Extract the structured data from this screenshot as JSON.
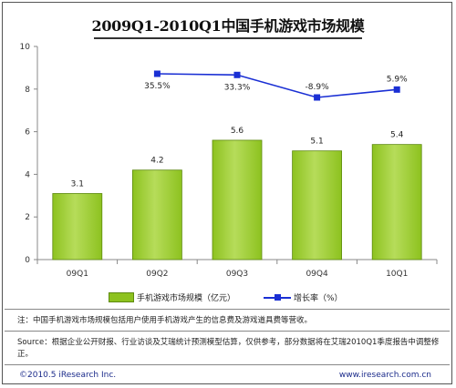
{
  "title": "2009Q1-2010Q1中国手机游戏市场规模",
  "chart_data": {
    "type": "bar+line",
    "categories": [
      "09Q1",
      "09Q2",
      "09Q3",
      "09Q4",
      "10Q1"
    ],
    "series": [
      {
        "name": "手机游戏市场规模（亿元）",
        "type": "bar",
        "values": [
          3.1,
          4.2,
          5.6,
          5.1,
          5.4
        ],
        "value_labels": [
          "3.1",
          "4.2",
          "5.6",
          "5.1",
          "5.4"
        ],
        "color": "#8dc21f"
      },
      {
        "name": "增长率（%）",
        "type": "line",
        "x": [
          "09Q2",
          "09Q3",
          "09Q4",
          "10Q1"
        ],
        "values": [
          35.5,
          33.3,
          -8.9,
          5.9
        ],
        "value_labels": [
          "35.5%",
          "33.3%",
          "-8.9%",
          "5.9%"
        ],
        "color": "#1a2fd4"
      }
    ],
    "y_ticks": [
      "0",
      "2",
      "4",
      "6",
      "8",
      "10"
    ],
    "ylim": [
      0,
      10
    ],
    "grid": false,
    "legend_position": "bottom"
  },
  "legend": {
    "bar_label": "手机游戏市场规模（亿元）",
    "line_label": "增长率（%）"
  },
  "note": "注：中国手机游戏市场规模包括用户使用手机游戏产生的信息费及游戏道具费等营收。",
  "source": "Source：根据企业公开财报、行业访谈及艾瑞统计预测模型估算，仅供参考，部分数据将在艾瑞2010Q1季度报告中调整修正。",
  "footer": {
    "copyright": "©2010.5 iResearch Inc.",
    "url": "www.iresearch.com.cn"
  },
  "colors": {
    "bar": "#8dc21f",
    "bar_top": "#b6dc5a",
    "line": "#1a2fd4",
    "footer_text": "#1a2a8a"
  }
}
